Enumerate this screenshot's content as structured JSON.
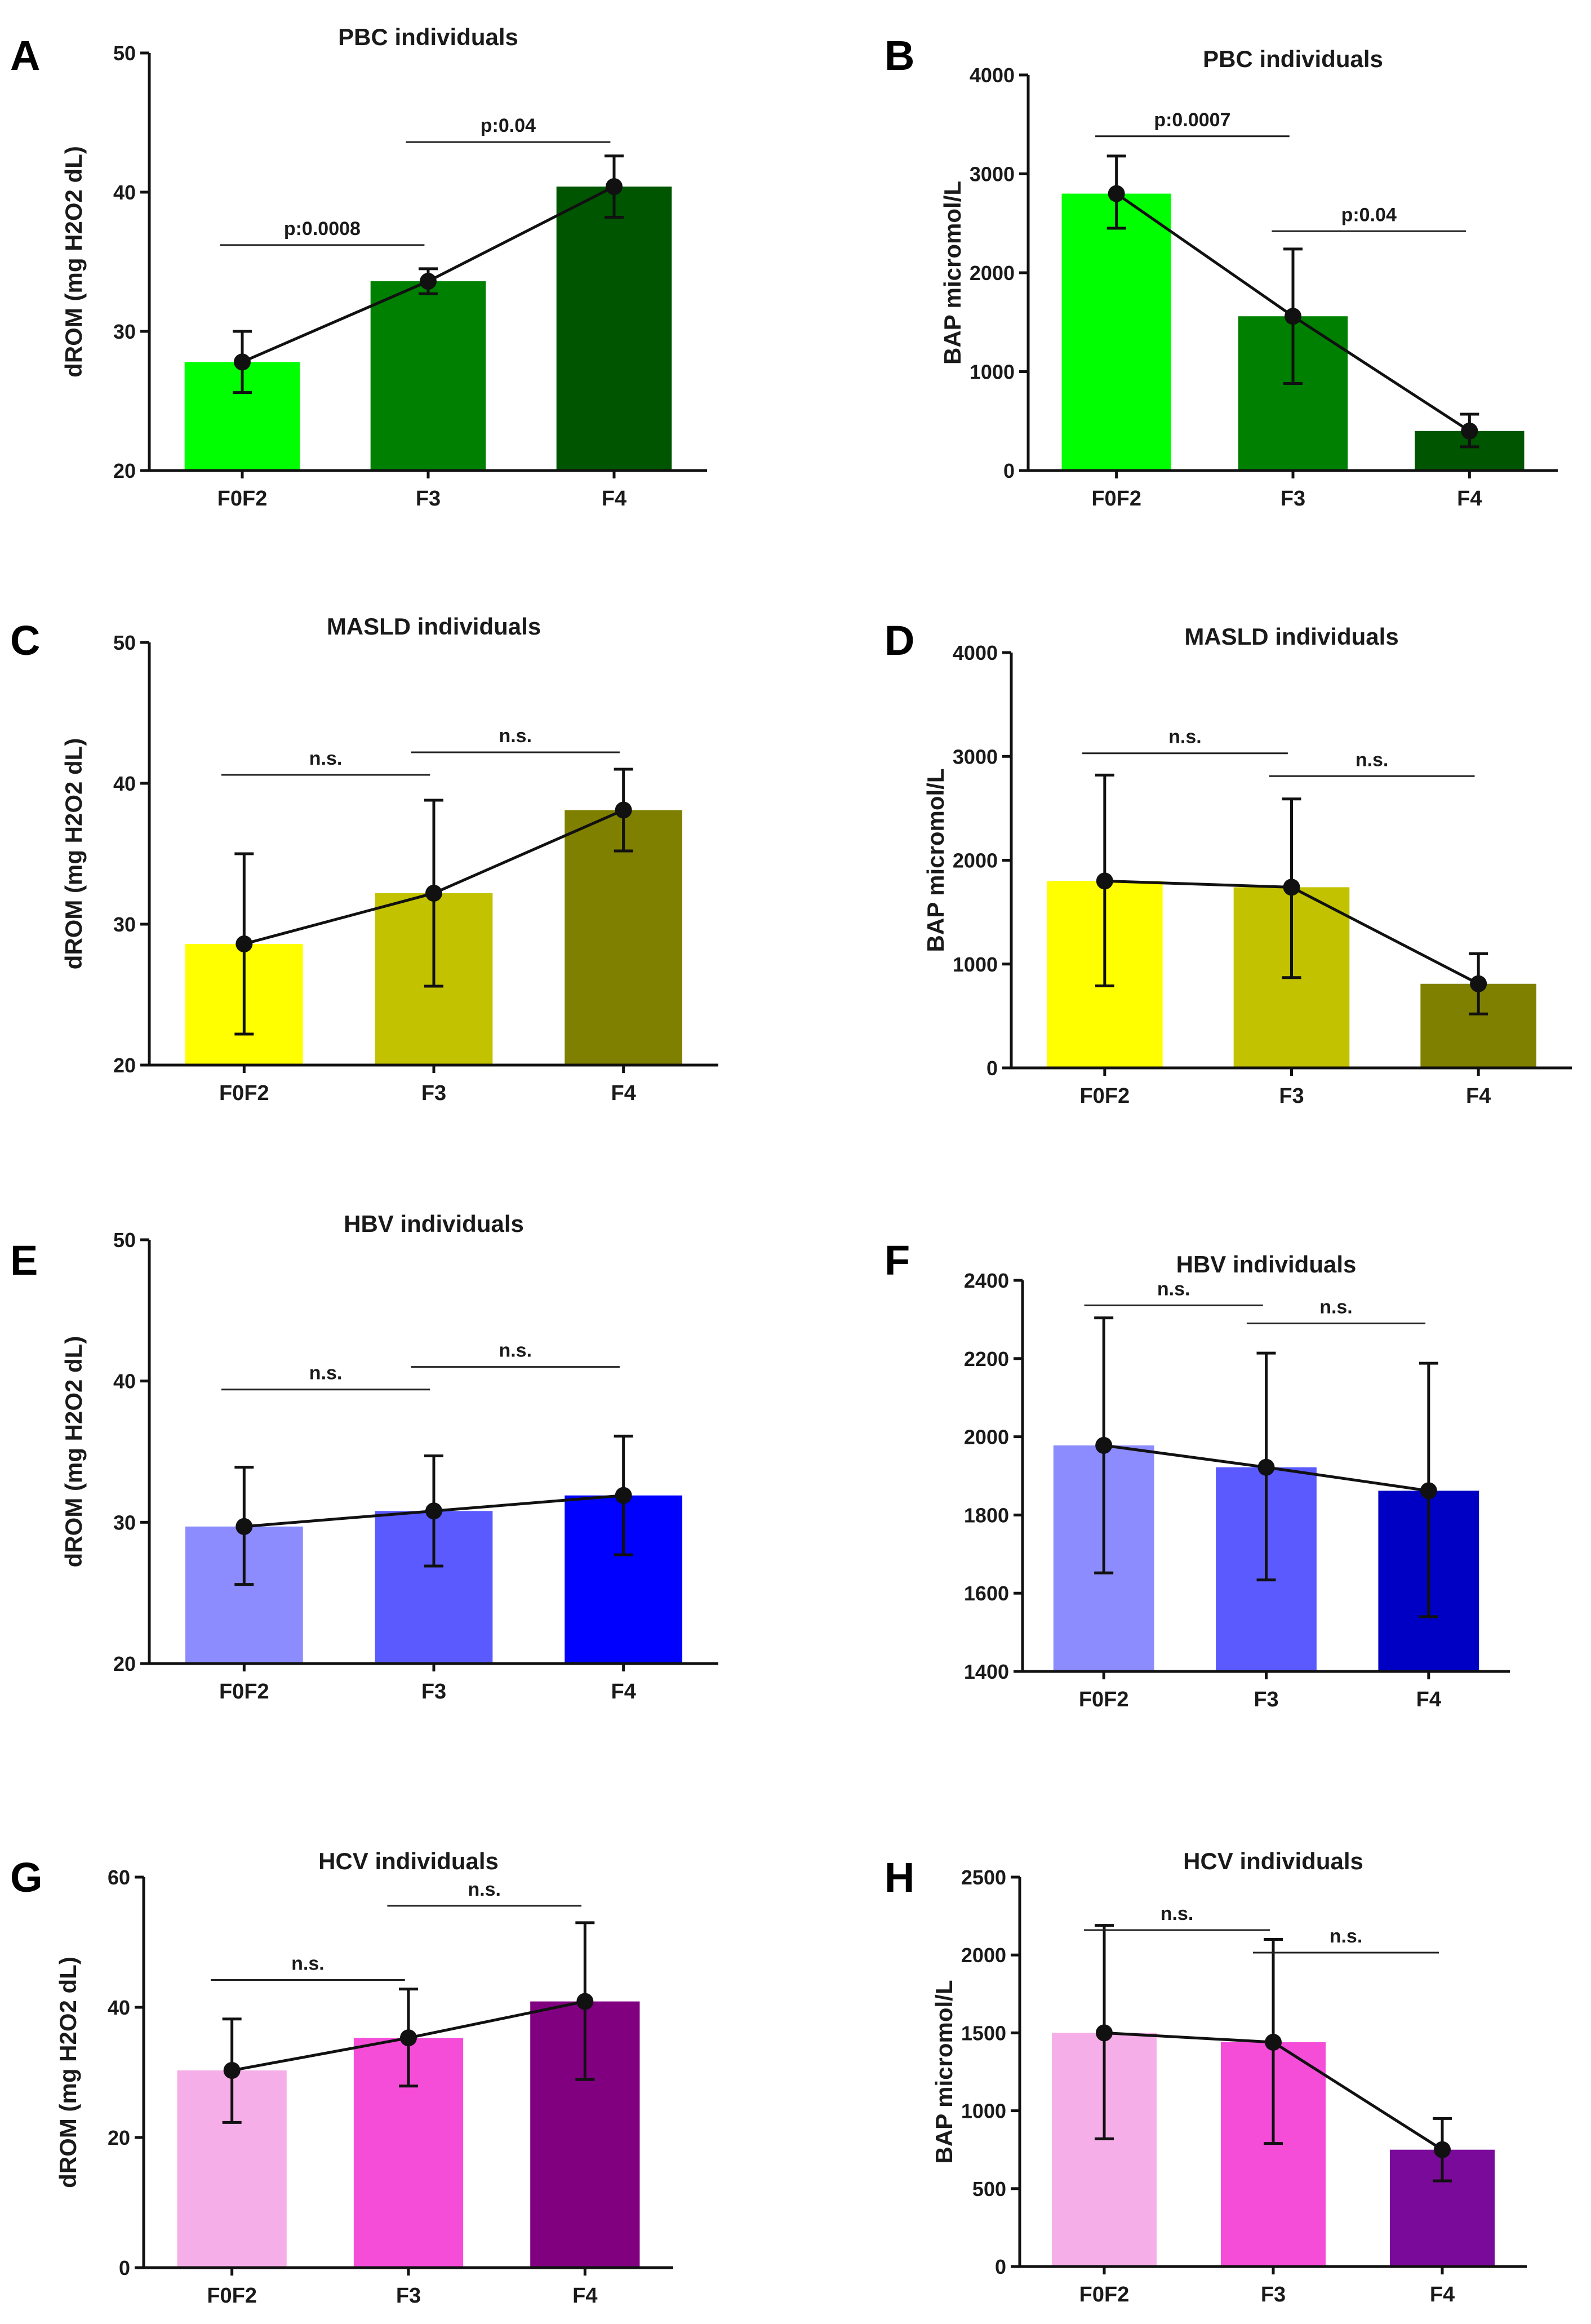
{
  "chart_data": [
    {
      "panel": "A",
      "type": "bar",
      "title": "PBC individuals",
      "xlabel": "",
      "ylabel": "dROM (mg H2O2 dL)",
      "ylim": [
        20,
        50
      ],
      "yticks": [
        20,
        30,
        40,
        50
      ],
      "categories": [
        "F0F2",
        "F3",
        "F4"
      ],
      "values": [
        27.8,
        33.6,
        40.4
      ],
      "err_low": [
        25.6,
        32.7,
        38.2
      ],
      "err_high": [
        30.0,
        34.5,
        42.6
      ],
      "colors": [
        "#00ff00",
        "#008000",
        "#005500"
      ],
      "trend_line": true,
      "comparisons": [
        {
          "from": 0,
          "to": 1,
          "label": "p:0.0008",
          "y": 36.2
        },
        {
          "from": 1,
          "to": 2,
          "label": "p:0.04",
          "y": 43.6
        }
      ]
    },
    {
      "panel": "B",
      "type": "bar",
      "title": "PBC individuals",
      "xlabel": "",
      "ylabel": "BAP micromol/L",
      "ylim": [
        0,
        4000
      ],
      "yticks": [
        0,
        1000,
        2000,
        3000,
        4000
      ],
      "categories": [
        "F0F2",
        "F3",
        "F4"
      ],
      "values": [
        2800,
        1560,
        400
      ],
      "err_low": [
        2450,
        880,
        240
      ],
      "err_high": [
        3180,
        2240,
        570
      ],
      "colors": [
        "#00ff00",
        "#008000",
        "#005500"
      ],
      "trend_line": true,
      "comparisons": [
        {
          "from": 0,
          "to": 1,
          "label": "p:0.0007",
          "y": 3380
        },
        {
          "from": 1,
          "to": 2,
          "label": "p:0.04",
          "y": 2420
        }
      ]
    },
    {
      "panel": "C",
      "type": "bar",
      "title": "MASLD  individuals",
      "xlabel": "",
      "ylabel": "dROM (mg H2O2 dL)",
      "ylim": [
        20,
        50
      ],
      "yticks": [
        20,
        30,
        40,
        50
      ],
      "categories": [
        "F0F2",
        "F3",
        "F4"
      ],
      "values": [
        28.6,
        32.2,
        38.1
      ],
      "err_low": [
        22.2,
        25.6,
        35.2
      ],
      "err_high": [
        35.0,
        38.8,
        41.0
      ],
      "colors": [
        "#ffff00",
        "#c2c200",
        "#808000"
      ],
      "trend_line": true,
      "comparisons": [
        {
          "from": 0,
          "to": 1,
          "label": "n.s.",
          "y": 40.6
        },
        {
          "from": 1,
          "to": 2,
          "label": "n.s.",
          "y": 42.2
        }
      ]
    },
    {
      "panel": "D",
      "type": "bar",
      "title": "MASLD individuals",
      "xlabel": "",
      "ylabel": "BAP micromol/L",
      "ylim": [
        0,
        4000
      ],
      "yticks": [
        0,
        1000,
        2000,
        3000,
        4000
      ],
      "categories": [
        "F0F2",
        "F3",
        "F4"
      ],
      "values": [
        1800,
        1740,
        810
      ],
      "err_low": [
        790,
        870,
        520
      ],
      "err_high": [
        2820,
        2590,
        1100
      ],
      "colors": [
        "#ffff00",
        "#c2c200",
        "#808000"
      ],
      "trend_line": true,
      "comparisons": [
        {
          "from": 0,
          "to": 1,
          "label": "n.s.",
          "y": 3030
        },
        {
          "from": 1,
          "to": 2,
          "label": "n.s.",
          "y": 2810
        }
      ]
    },
    {
      "panel": "E",
      "type": "bar",
      "title": "HBV individuals",
      "xlabel": "",
      "ylabel": "dROM (mg H2O2 dL)",
      "ylim": [
        20,
        50
      ],
      "yticks": [
        20,
        30,
        40,
        50
      ],
      "categories": [
        "F0F2",
        "F3",
        "F4"
      ],
      "values": [
        29.7,
        30.8,
        31.9
      ],
      "err_low": [
        25.6,
        26.9,
        27.7
      ],
      "err_high": [
        33.9,
        34.7,
        36.1
      ],
      "colors": [
        "#8c8cff",
        "#5a5aff",
        "#0000ff"
      ],
      "trend_line": true,
      "comparisons": [
        {
          "from": 0,
          "to": 1,
          "label": "n.s.",
          "y": 39.4
        },
        {
          "from": 1,
          "to": 2,
          "label": "n.s.",
          "y": 41.0
        }
      ]
    },
    {
      "panel": "F",
      "type": "bar",
      "title": "HBV individuals",
      "xlabel": "",
      "ylabel": "",
      "ylim": [
        1400,
        2400
      ],
      "yticks": [
        1400,
        1600,
        1800,
        2000,
        2200,
        2400
      ],
      "categories": [
        "F0F2",
        "F3",
        "F4"
      ],
      "values": [
        1978,
        1922,
        1862
      ],
      "err_low": [
        1652,
        1634,
        1540
      ],
      "err_high": [
        2304,
        2214,
        2188
      ],
      "colors": [
        "#8c8cff",
        "#5a5aff",
        "#0000c4"
      ],
      "trend_line": true,
      "comparisons": [
        {
          "from": 0,
          "to": 1,
          "label": "n.s.",
          "y": 2336
        },
        {
          "from": 1,
          "to": 2,
          "label": "n.s.",
          "y": 2290
        }
      ]
    },
    {
      "panel": "G",
      "type": "bar",
      "title": "HCV individuals",
      "xlabel": "",
      "ylabel": "dROM (mg H2O2 dL)",
      "ylim": [
        0,
        60
      ],
      "yticks": [
        0,
        20,
        40,
        60
      ],
      "categories": [
        "F0F2",
        "F3",
        "F4"
      ],
      "values": [
        30.3,
        35.3,
        40.9
      ],
      "err_low": [
        22.3,
        27.9,
        28.9
      ],
      "err_high": [
        38.2,
        42.8,
        53.0
      ],
      "colors": [
        "#f5aee8",
        "#f54dd8",
        "#800080"
      ],
      "trend_line": true,
      "comparisons": [
        {
          "from": 0,
          "to": 1,
          "label": "n.s.",
          "y": 44.2
        },
        {
          "from": 1,
          "to": 2,
          "label": "n.s.",
          "y": 55.6
        }
      ]
    },
    {
      "panel": "H",
      "type": "bar",
      "title": "HCV individuals",
      "xlabel": "",
      "ylabel": "BAP micromol/L",
      "ylim": [
        0,
        2500
      ],
      "yticks": [
        0,
        500,
        1000,
        1500,
        2000,
        2500
      ],
      "categories": [
        "F0F2",
        "F3",
        "F4"
      ],
      "values": [
        1500,
        1440,
        750
      ],
      "err_low": [
        820,
        790,
        550
      ],
      "err_high": [
        2190,
        2100,
        950
      ],
      "colors": [
        "#f5aee8",
        "#f54dd8",
        "#7a0a9a"
      ],
      "trend_line": true,
      "comparisons": [
        {
          "from": 0,
          "to": 1,
          "label": "n.s.",
          "y": 2160
        },
        {
          "from": 1,
          "to": 2,
          "label": "n.s.",
          "y": 2015
        }
      ]
    }
  ]
}
